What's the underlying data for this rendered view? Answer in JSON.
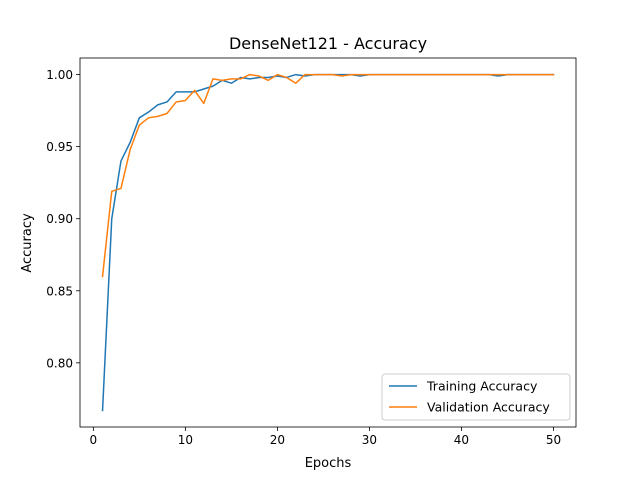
{
  "chart_data": {
    "type": "line",
    "title": "DenseNet121 - Accuracy",
    "xlabel": "Epochs",
    "ylabel": "Accuracy",
    "xlim": [
      -1.45,
      52.45
    ],
    "ylim": [
      0.7555,
      1.0115
    ],
    "xticks": [
      0,
      10,
      20,
      30,
      40,
      50
    ],
    "yticks": [
      0.8,
      0.85,
      0.9,
      0.95,
      1.0
    ],
    "ytick_labels": [
      "0.80",
      "0.85",
      "0.90",
      "0.95",
      "1.00"
    ],
    "grid": false,
    "legend_position": "lower right",
    "x": [
      1,
      2,
      3,
      4,
      5,
      6,
      7,
      8,
      9,
      10,
      11,
      12,
      13,
      14,
      15,
      16,
      17,
      18,
      19,
      20,
      21,
      22,
      23,
      24,
      25,
      26,
      27,
      28,
      29,
      30,
      31,
      32,
      33,
      34,
      35,
      36,
      37,
      38,
      39,
      40,
      41,
      42,
      43,
      44,
      45,
      46,
      47,
      48,
      49,
      50
    ],
    "series": [
      {
        "name": "Training Accuracy",
        "color": "#1f77b4",
        "values": [
          0.767,
          0.9,
          0.94,
          0.953,
          0.97,
          0.974,
          0.979,
          0.981,
          0.988,
          0.988,
          0.988,
          0.99,
          0.992,
          0.996,
          0.994,
          0.998,
          0.997,
          0.998,
          0.998,
          0.999,
          0.998,
          1.0,
          0.999,
          1.0,
          1.0,
          1.0,
          1.0,
          1.0,
          0.999,
          1.0,
          1.0,
          1.0,
          1.0,
          1.0,
          1.0,
          1.0,
          1.0,
          1.0,
          1.0,
          1.0,
          1.0,
          1.0,
          1.0,
          0.999,
          1.0,
          1.0,
          1.0,
          1.0,
          1.0,
          1.0
        ]
      },
      {
        "name": "Validation Accuracy",
        "color": "#ff7f0e",
        "values": [
          0.86,
          0.919,
          0.921,
          0.948,
          0.965,
          0.97,
          0.971,
          0.973,
          0.981,
          0.982,
          0.989,
          0.98,
          0.997,
          0.996,
          0.997,
          0.997,
          1.0,
          0.999,
          0.996,
          1.0,
          0.998,
          0.994,
          1.0,
          1.0,
          1.0,
          1.0,
          0.999,
          1.0,
          1.0,
          1.0,
          1.0,
          1.0,
          1.0,
          1.0,
          1.0,
          1.0,
          1.0,
          1.0,
          1.0,
          1.0,
          1.0,
          1.0,
          1.0,
          1.0,
          1.0,
          1.0,
          1.0,
          1.0,
          1.0,
          1.0
        ]
      }
    ]
  }
}
